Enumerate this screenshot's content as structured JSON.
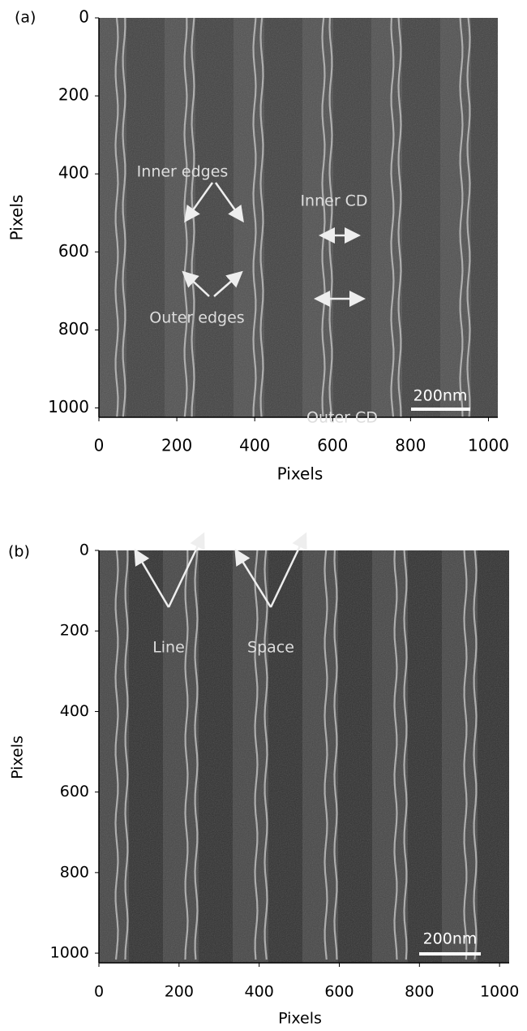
{
  "panels": [
    {
      "label": "(a)",
      "x_label": "Pixels",
      "y_label": "Pixels",
      "xlim": [
        0,
        1024
      ],
      "ylim": [
        0,
        1024
      ],
      "xticks": [
        0,
        200,
        400,
        600,
        800,
        1000
      ],
      "yticks": [
        0,
        200,
        400,
        600,
        800,
        1000
      ],
      "scale_bar": "200nm",
      "annotations": []
    },
    {
      "label": "(b)",
      "x_label": "Pixels",
      "y_label": "Pixels",
      "xlim": [
        0,
        1024
      ],
      "ylim": [
        0,
        1024
      ],
      "xticks": [
        0,
        200,
        400,
        600,
        800,
        1000
      ],
      "yticks": [
        0,
        200,
        400,
        600,
        800,
        1000
      ],
      "scale_bar": "200nm",
      "annotations": [
        "Inner edges",
        "Outer edges",
        "Inner CD",
        "Outer CD",
        "Line",
        "Space"
      ]
    }
  ]
}
